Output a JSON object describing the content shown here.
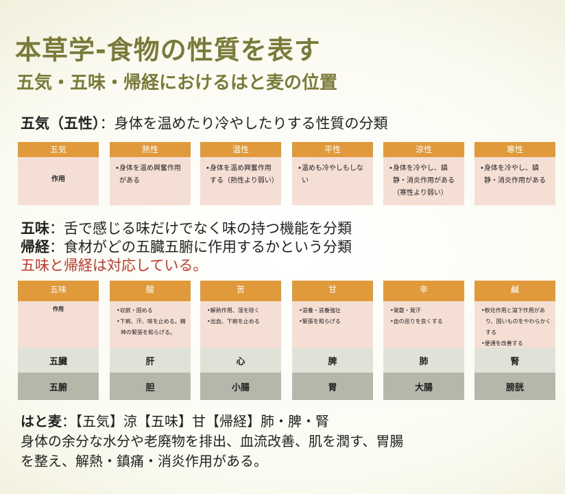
{
  "title": "本草学-食物の性質を表す",
  "subtitle": "五気・五味・帰経におけるはと麦の位置",
  "goki_line": {
    "term": "五気（五性）",
    "desc": "：身体を温めたり冷やしたりする性質の分類"
  },
  "table1": {
    "row_label": "作用",
    "columns": [
      {
        "header": "五気",
        "items": []
      },
      {
        "header": "熱性",
        "items": [
          "•身体を温め興奮作用がある"
        ]
      },
      {
        "header": "温性",
        "items": [
          "•身体を温め興奮作用する（熱性より弱い）"
        ]
      },
      {
        "header": "平性",
        "items": [
          "•温めも冷やしもしない"
        ]
      },
      {
        "header": "涼性",
        "items": [
          "•身体を冷やし、鎮静・消炎作用がある（寒性より弱い）"
        ]
      },
      {
        "header": "寒性",
        "items": [
          "•身体を冷やし、鎮静・消炎作用がある"
        ]
      }
    ]
  },
  "gomi_line": {
    "term": "五味",
    "desc": "：舌で感じる味だけでなく味の持つ機能を分類"
  },
  "kikei_line": {
    "term": "帰経",
    "desc": "：食材がどの五臓五腑に作用するかという分類"
  },
  "note_line": "五味と帰経は対応している。",
  "table2": {
    "row_label": "作用",
    "organ1_label": "五臓",
    "organ2_label": "五腑",
    "columns": [
      {
        "header": "五味",
        "items": [],
        "organ1": "",
        "organ2": ""
      },
      {
        "header": "酸",
        "items": [
          "•収斂・固める",
          "•下痢、汗、咳を止める。精神の緊張を和らげる。"
        ],
        "organ1": "肝",
        "organ2": "胆"
      },
      {
        "header": "苦",
        "items": [
          "•解熱作用、湿を除く",
          "•出血、下痢を止める"
        ],
        "organ1": "心",
        "organ2": "小腸"
      },
      {
        "header": "甘",
        "items": [
          "•滋養・滋養強壮",
          "•緊張を和らげる"
        ],
        "organ1": "脾",
        "organ2": "胃"
      },
      {
        "header": "辛",
        "items": [
          "•発散・発汗",
          "•血の巡りを良くする"
        ],
        "organ1": "肺",
        "organ2": "大腸"
      },
      {
        "header": "鹹",
        "items": [
          "•軟化作用と瀉下作用があり、固いものをやわらかくする",
          "•便通を改善する"
        ],
        "organ1": "腎",
        "organ2": "膀胱"
      }
    ]
  },
  "hatomugi_line": {
    "term": "はと麦",
    "desc": "：【五気】涼【五味】甘【帰経】肺・脾・腎"
  },
  "effect_line1": "身体の余分な水分や老廃物を排出、血流改善、肌を潤す、胃腸",
  "effect_line2": "を整え、解熱・鎮痛・消炎作用がある。"
}
